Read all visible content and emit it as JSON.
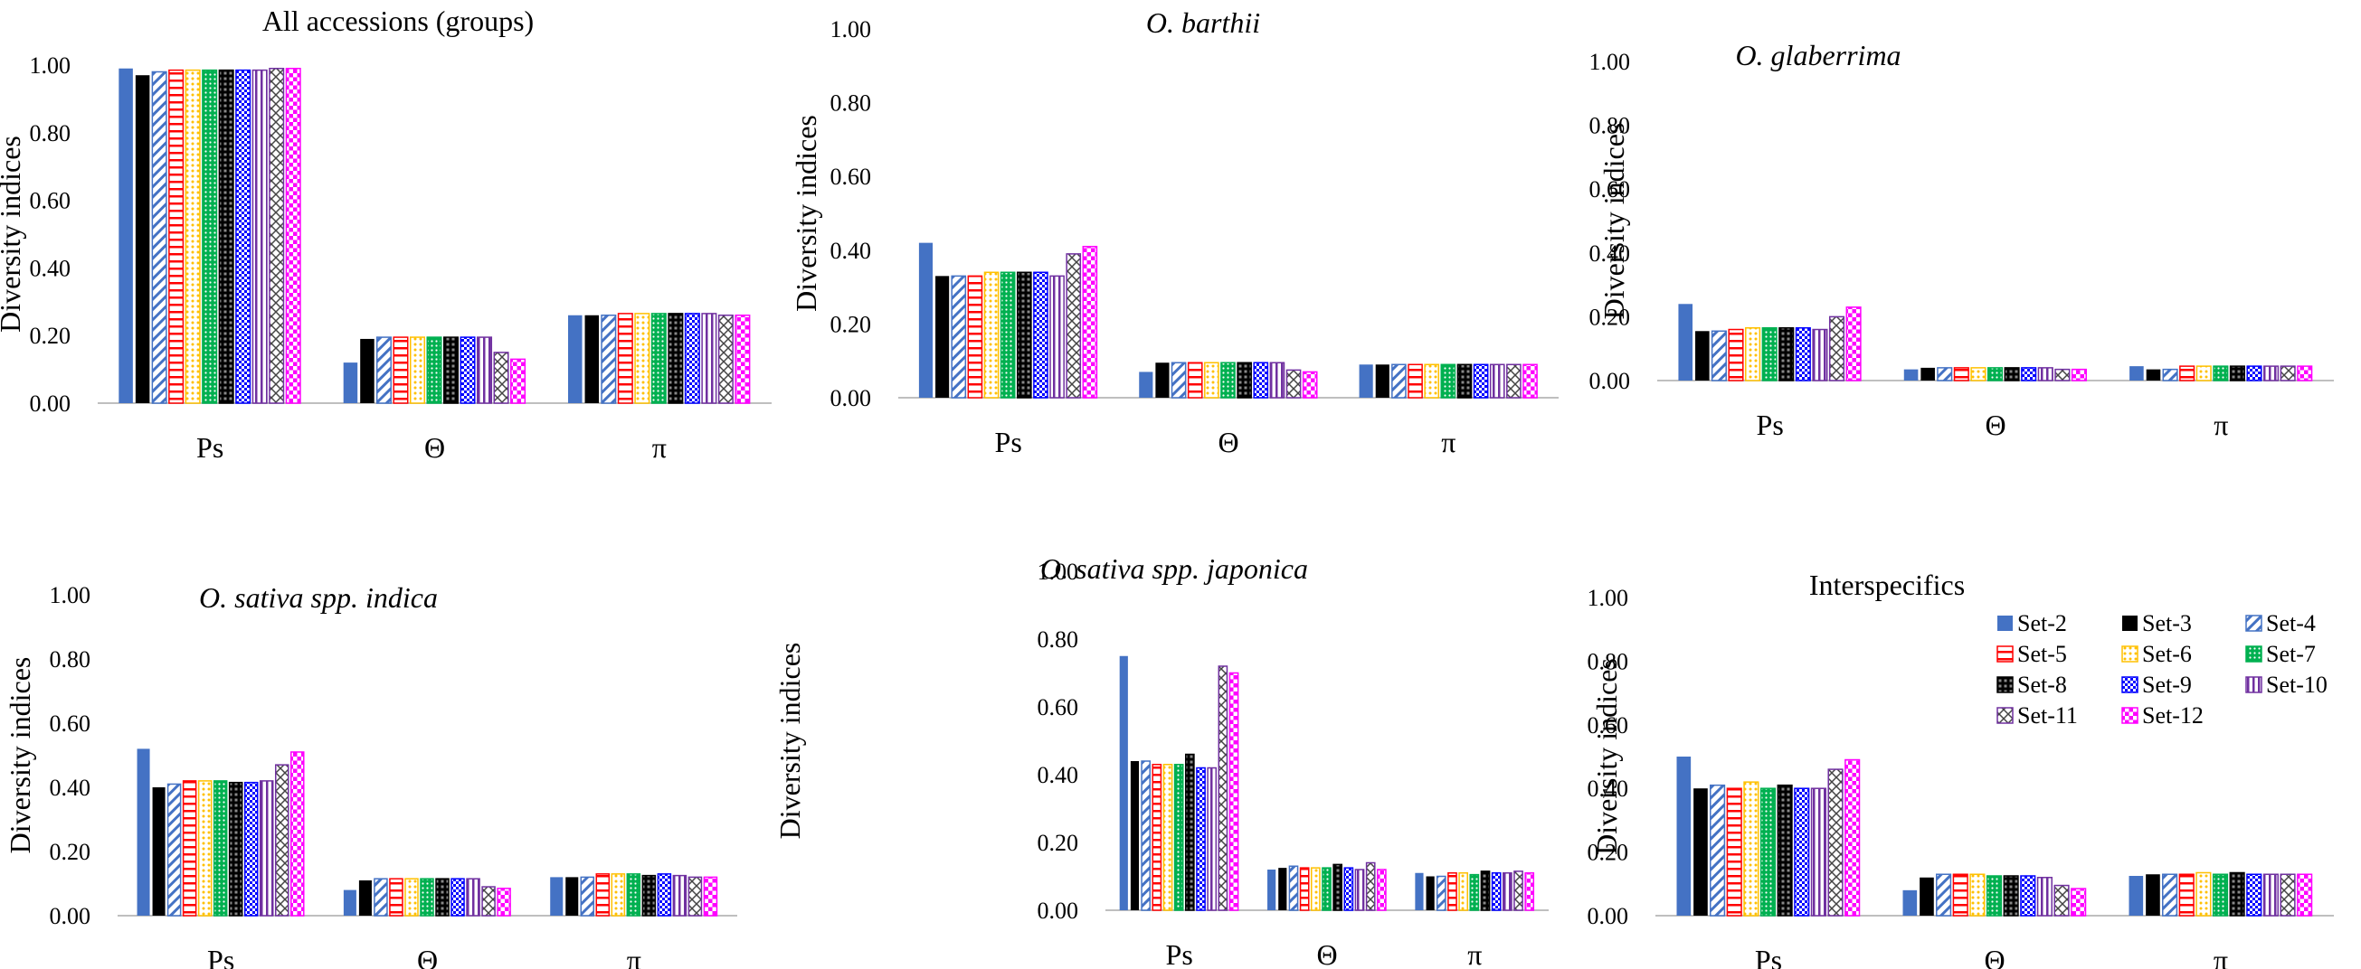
{
  "chart_data": [
    {
      "type": "bar",
      "title": "All accessions (groups)",
      "title_italic": false,
      "ylabel": "Diversity indices",
      "ylim": [
        0,
        1.0
      ],
      "yticks": [
        "0.00",
        "0.20",
        "0.40",
        "0.60",
        "0.80",
        "1.00"
      ],
      "categories": [
        "Ps",
        "Θ",
        "π"
      ],
      "series": [
        {
          "name": "Set-2",
          "values": [
            0.99,
            0.12,
            0.26
          ]
        },
        {
          "name": "Set-3",
          "values": [
            0.97,
            0.19,
            0.26
          ]
        },
        {
          "name": "Set-4",
          "values": [
            0.98,
            0.195,
            0.26
          ]
        },
        {
          "name": "Set-5",
          "values": [
            0.985,
            0.195,
            0.265
          ]
        },
        {
          "name": "Set-6",
          "values": [
            0.985,
            0.195,
            0.265
          ]
        },
        {
          "name": "Set-7",
          "values": [
            0.985,
            0.195,
            0.265
          ]
        },
        {
          "name": "Set-8",
          "values": [
            0.985,
            0.195,
            0.265
          ]
        },
        {
          "name": "Set-9",
          "values": [
            0.985,
            0.195,
            0.265
          ]
        },
        {
          "name": "Set-10",
          "values": [
            0.985,
            0.195,
            0.265
          ]
        },
        {
          "name": "Set-11",
          "values": [
            0.99,
            0.15,
            0.26
          ]
        },
        {
          "name": "Set-12",
          "values": [
            0.99,
            0.13,
            0.26
          ]
        }
      ]
    },
    {
      "type": "bar",
      "title": "O. barthii",
      "title_italic": true,
      "ylabel": "Diversity indices",
      "ylim": [
        0,
        1.0
      ],
      "yticks": [
        "0.00",
        "0.20",
        "0.40",
        "0.60",
        "0.80",
        "1.00"
      ],
      "categories": [
        "Ps",
        "Θ",
        "π"
      ],
      "series": [
        {
          "name": "Set-2",
          "values": [
            0.42,
            0.07,
            0.09
          ]
        },
        {
          "name": "Set-3",
          "values": [
            0.33,
            0.095,
            0.09
          ]
        },
        {
          "name": "Set-4",
          "values": [
            0.33,
            0.095,
            0.09
          ]
        },
        {
          "name": "Set-5",
          "values": [
            0.33,
            0.095,
            0.09
          ]
        },
        {
          "name": "Set-6",
          "values": [
            0.34,
            0.095,
            0.09
          ]
        },
        {
          "name": "Set-7",
          "values": [
            0.34,
            0.095,
            0.09
          ]
        },
        {
          "name": "Set-8",
          "values": [
            0.34,
            0.095,
            0.09
          ]
        },
        {
          "name": "Set-9",
          "values": [
            0.34,
            0.095,
            0.09
          ]
        },
        {
          "name": "Set-10",
          "values": [
            0.33,
            0.095,
            0.09
          ]
        },
        {
          "name": "Set-11",
          "values": [
            0.39,
            0.075,
            0.09
          ]
        },
        {
          "name": "Set-12",
          "values": [
            0.41,
            0.07,
            0.09
          ]
        }
      ]
    },
    {
      "type": "bar",
      "title": "O. glaberrima",
      "title_italic": true,
      "ylabel": "Diversity indices",
      "ylim": [
        0,
        1.0
      ],
      "yticks": [
        "0.00",
        "0.20",
        "0.40",
        "0.60",
        "0.80",
        "1.00"
      ],
      "categories": [
        "Ps",
        "Θ",
        "π"
      ],
      "series": [
        {
          "name": "Set-2",
          "values": [
            0.24,
            0.035,
            0.045
          ]
        },
        {
          "name": "Set-3",
          "values": [
            0.155,
            0.04,
            0.035
          ]
        },
        {
          "name": "Set-4",
          "values": [
            0.155,
            0.04,
            0.035
          ]
        },
        {
          "name": "Set-5",
          "values": [
            0.16,
            0.04,
            0.045
          ]
        },
        {
          "name": "Set-6",
          "values": [
            0.165,
            0.04,
            0.045
          ]
        },
        {
          "name": "Set-7",
          "values": [
            0.165,
            0.04,
            0.045
          ]
        },
        {
          "name": "Set-8",
          "values": [
            0.165,
            0.04,
            0.045
          ]
        },
        {
          "name": "Set-9",
          "values": [
            0.165,
            0.04,
            0.045
          ]
        },
        {
          "name": "Set-10",
          "values": [
            0.16,
            0.04,
            0.045
          ]
        },
        {
          "name": "Set-11",
          "values": [
            0.2,
            0.035,
            0.045
          ]
        },
        {
          "name": "Set-12",
          "values": [
            0.23,
            0.035,
            0.045
          ]
        }
      ]
    },
    {
      "type": "bar",
      "title": "O. sativa spp. indica",
      "title_italic": true,
      "ylabel": "Diversity indices",
      "ylim": [
        0,
        1.0
      ],
      "yticks": [
        "0.00",
        "0.20",
        "0.40",
        "0.60",
        "0.80",
        "1.00"
      ],
      "categories": [
        "Ps",
        "Θ",
        "π"
      ],
      "series": [
        {
          "name": "Set-2",
          "values": [
            0.52,
            0.08,
            0.12
          ]
        },
        {
          "name": "Set-3",
          "values": [
            0.4,
            0.11,
            0.12
          ]
        },
        {
          "name": "Set-4",
          "values": [
            0.41,
            0.115,
            0.12
          ]
        },
        {
          "name": "Set-5",
          "values": [
            0.42,
            0.115,
            0.13
          ]
        },
        {
          "name": "Set-6",
          "values": [
            0.42,
            0.115,
            0.13
          ]
        },
        {
          "name": "Set-7",
          "values": [
            0.42,
            0.115,
            0.13
          ]
        },
        {
          "name": "Set-8",
          "values": [
            0.415,
            0.115,
            0.125
          ]
        },
        {
          "name": "Set-9",
          "values": [
            0.415,
            0.115,
            0.13
          ]
        },
        {
          "name": "Set-10",
          "values": [
            0.42,
            0.115,
            0.125
          ]
        },
        {
          "name": "Set-11",
          "values": [
            0.47,
            0.09,
            0.12
          ]
        },
        {
          "name": "Set-12",
          "values": [
            0.51,
            0.085,
            0.12
          ]
        }
      ]
    },
    {
      "type": "bar",
      "title": "O. sativa spp. japonica",
      "title_italic": true,
      "ylabel": "Diversity indices",
      "ylim": [
        0,
        1.0
      ],
      "yticks": [
        "0.00",
        "0.20",
        "0.40",
        "0.60",
        "0.80",
        "1.00"
      ],
      "categories": [
        "Ps",
        "Θ",
        "π"
      ],
      "series": [
        {
          "name": "Set-2",
          "values": [
            0.75,
            0.12,
            0.11
          ]
        },
        {
          "name": "Set-3",
          "values": [
            0.44,
            0.125,
            0.1
          ]
        },
        {
          "name": "Set-4",
          "values": [
            0.44,
            0.13,
            0.1
          ]
        },
        {
          "name": "Set-5",
          "values": [
            0.43,
            0.125,
            0.11
          ]
        },
        {
          "name": "Set-6",
          "values": [
            0.43,
            0.125,
            0.11
          ]
        },
        {
          "name": "Set-7",
          "values": [
            0.43,
            0.125,
            0.105
          ]
        },
        {
          "name": "Set-8",
          "values": [
            0.46,
            0.135,
            0.115
          ]
        },
        {
          "name": "Set-9",
          "values": [
            0.42,
            0.125,
            0.11
          ]
        },
        {
          "name": "Set-10",
          "values": [
            0.42,
            0.12,
            0.11
          ]
        },
        {
          "name": "Set-11",
          "values": [
            0.72,
            0.14,
            0.115
          ]
        },
        {
          "name": "Set-12",
          "values": [
            0.7,
            0.12,
            0.11
          ]
        }
      ]
    },
    {
      "type": "bar",
      "title": "Interspecifics",
      "title_italic": false,
      "ylabel": "Diversity indices",
      "ylim": [
        0,
        1.0
      ],
      "yticks": [
        "0.00",
        "0.20",
        "0.40",
        "0.60",
        "0.80",
        "1.00"
      ],
      "categories": [
        "Ps",
        "Θ",
        "π"
      ],
      "series": [
        {
          "name": "Set-2",
          "values": [
            0.5,
            0.08,
            0.125
          ]
        },
        {
          "name": "Set-3",
          "values": [
            0.4,
            0.12,
            0.13
          ]
        },
        {
          "name": "Set-4",
          "values": [
            0.41,
            0.13,
            0.13
          ]
        },
        {
          "name": "Set-5",
          "values": [
            0.4,
            0.13,
            0.13
          ]
        },
        {
          "name": "Set-6",
          "values": [
            0.42,
            0.13,
            0.135
          ]
        },
        {
          "name": "Set-7",
          "values": [
            0.4,
            0.125,
            0.13
          ]
        },
        {
          "name": "Set-8",
          "values": [
            0.41,
            0.125,
            0.135
          ]
        },
        {
          "name": "Set-9",
          "values": [
            0.4,
            0.125,
            0.13
          ]
        },
        {
          "name": "Set-10",
          "values": [
            0.4,
            0.12,
            0.13
          ]
        },
        {
          "name": "Set-11",
          "values": [
            0.46,
            0.095,
            0.13
          ]
        },
        {
          "name": "Set-12",
          "values": [
            0.49,
            0.085,
            0.13
          ]
        }
      ]
    }
  ],
  "legend": {
    "position": "inside-top-right of Interspecifics panel",
    "entries": [
      "Set-2",
      "Set-3",
      "Set-4",
      "Set-5",
      "Set-6",
      "Set-7",
      "Set-8",
      "Set-9",
      "Set-10",
      "Set-11",
      "Set-12"
    ]
  },
  "series_style": {
    "Set-2": {
      "color": "#4472C4",
      "pattern": "solid"
    },
    "Set-3": {
      "color": "#000000",
      "pattern": "solid"
    },
    "Set-4": {
      "color": "#4472C4",
      "pattern": "diagonal"
    },
    "Set-5": {
      "color": "#FF0000",
      "pattern": "horizontal"
    },
    "Set-6": {
      "color": "#FFC000",
      "pattern": "dots"
    },
    "Set-7": {
      "color": "#00B050",
      "pattern": "dots-dense"
    },
    "Set-8": {
      "color": "#000000",
      "pattern": "crosshatch"
    },
    "Set-9": {
      "color": "#0000FF",
      "pattern": "checker"
    },
    "Set-10": {
      "color": "#7030A0",
      "pattern": "vertical"
    },
    "Set-11": {
      "color": "#7030A0",
      "pattern": "lattice"
    },
    "Set-12": {
      "color": "#FF00FF",
      "pattern": "checker-large"
    }
  }
}
